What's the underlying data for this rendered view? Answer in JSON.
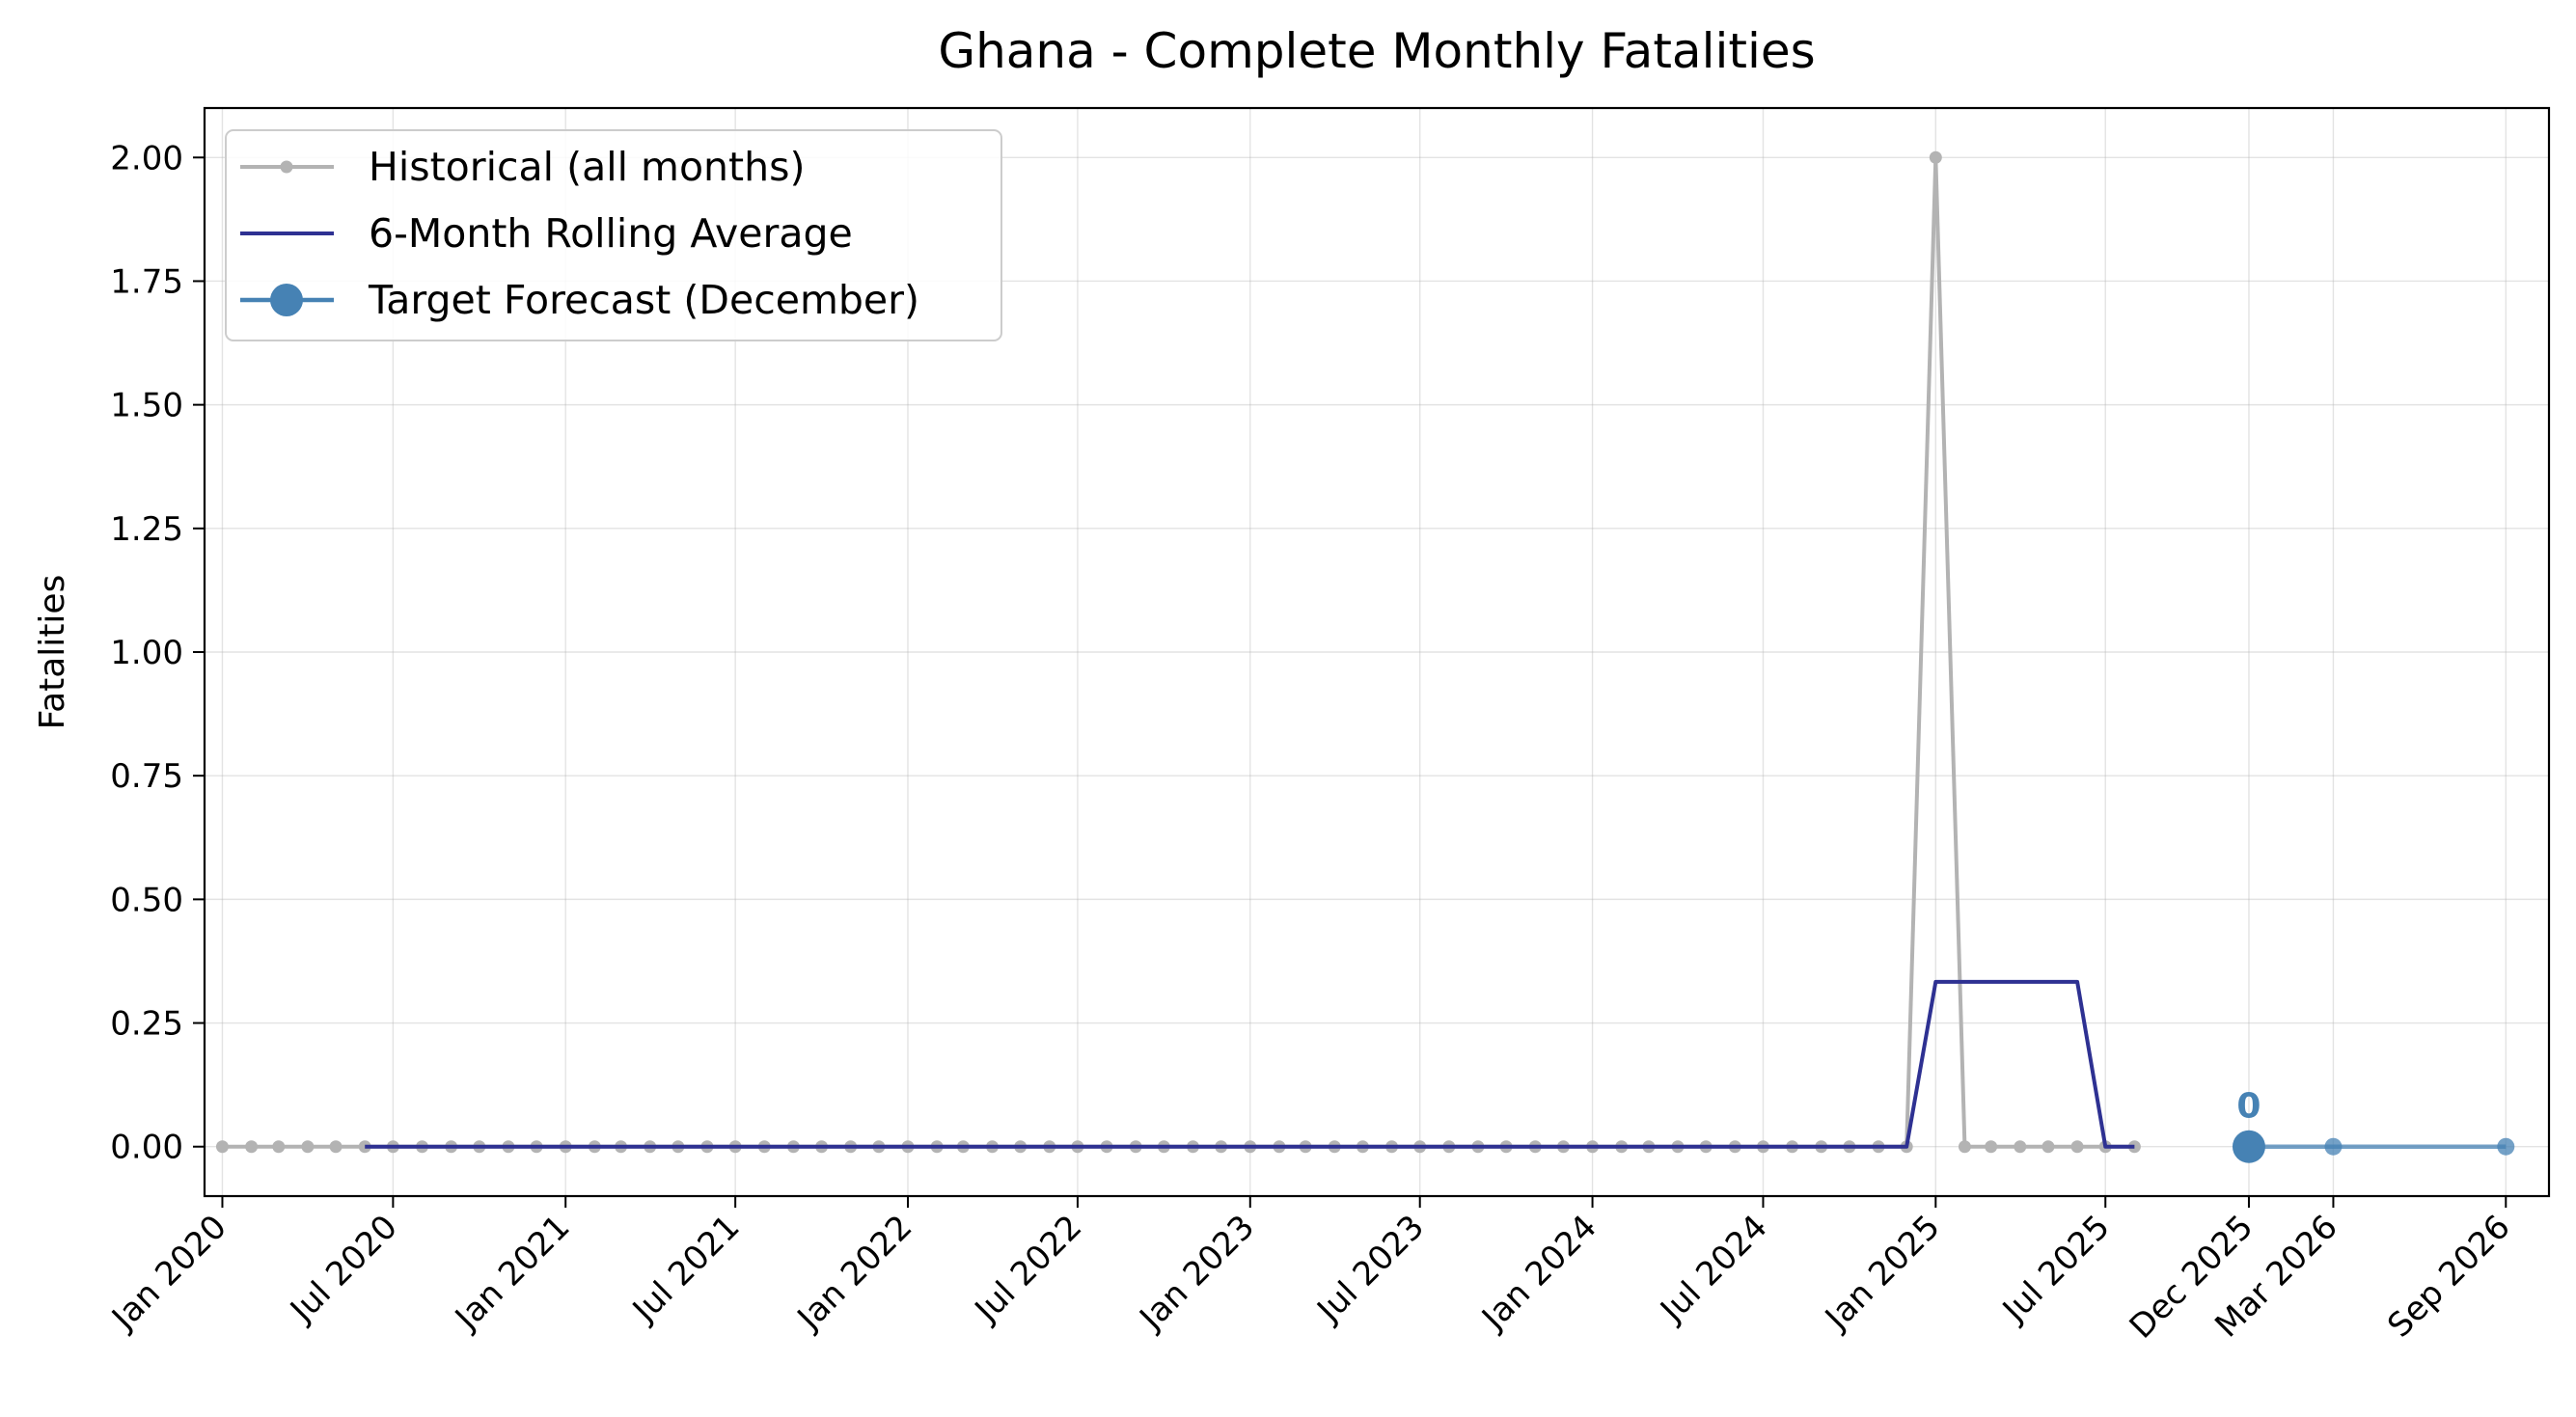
{
  "chart_data": {
    "type": "line",
    "title": "Ghana - Complete Monthly Fatalities",
    "xlabel": "",
    "ylabel": "Fatalities",
    "ylim": [
      -0.1,
      2.1
    ],
    "xlim": [
      "2019-12-13",
      "2026-10-17"
    ],
    "yticks": [
      0.0,
      0.25,
      0.5,
      0.75,
      1.0,
      1.25,
      1.5,
      1.75,
      2.0
    ],
    "ytick_labels": [
      "0.00",
      "0.25",
      "0.50",
      "0.75",
      "1.00",
      "1.25",
      "1.50",
      "1.75",
      "2.00"
    ],
    "xticks": [
      {
        "date": "2020-01-01",
        "label": "Jan 2020"
      },
      {
        "date": "2020-07-01",
        "label": "Jul 2020"
      },
      {
        "date": "2021-01-01",
        "label": "Jan 2021"
      },
      {
        "date": "2021-07-01",
        "label": "Jul 2021"
      },
      {
        "date": "2022-01-01",
        "label": "Jan 2022"
      },
      {
        "date": "2022-07-01",
        "label": "Jul 2022"
      },
      {
        "date": "2023-01-01",
        "label": "Jan 2023"
      },
      {
        "date": "2023-07-01",
        "label": "Jul 2023"
      },
      {
        "date": "2024-01-01",
        "label": "Jan 2024"
      },
      {
        "date": "2024-07-01",
        "label": "Jul 2024"
      },
      {
        "date": "2025-01-01",
        "label": "Jan 2025"
      },
      {
        "date": "2025-07-01",
        "label": "Jul 2025"
      },
      {
        "date": "2025-12-01",
        "label": "Dec 2025"
      },
      {
        "date": "2026-03-01",
        "label": "Mar 2026"
      },
      {
        "date": "2026-09-01",
        "label": "Sep 2026"
      }
    ],
    "grid": true,
    "legend_position": "top-left",
    "series": [
      {
        "name": "Historical (all months)",
        "color": "#b3b3b3",
        "style": "line-with-small-markers",
        "x": [
          "2020-01",
          "2020-02",
          "2020-03",
          "2020-04",
          "2020-05",
          "2020-06",
          "2020-07",
          "2020-08",
          "2020-09",
          "2020-10",
          "2020-11",
          "2020-12",
          "2021-01",
          "2021-02",
          "2021-03",
          "2021-04",
          "2021-05",
          "2021-06",
          "2021-07",
          "2021-08",
          "2021-09",
          "2021-10",
          "2021-11",
          "2021-12",
          "2022-01",
          "2022-02",
          "2022-03",
          "2022-04",
          "2022-05",
          "2022-06",
          "2022-07",
          "2022-08",
          "2022-09",
          "2022-10",
          "2022-11",
          "2022-12",
          "2023-01",
          "2023-02",
          "2023-03",
          "2023-04",
          "2023-05",
          "2023-06",
          "2023-07",
          "2023-08",
          "2023-09",
          "2023-10",
          "2023-11",
          "2023-12",
          "2024-01",
          "2024-02",
          "2024-03",
          "2024-04",
          "2024-05",
          "2024-06",
          "2024-07",
          "2024-08",
          "2024-09",
          "2024-10",
          "2024-11",
          "2024-12",
          "2025-01",
          "2025-02",
          "2025-03",
          "2025-04",
          "2025-05",
          "2025-06",
          "2025-07",
          "2025-08"
        ],
        "y": [
          0,
          0,
          0,
          0,
          0,
          0,
          0,
          0,
          0,
          0,
          0,
          0,
          0,
          0,
          0,
          0,
          0,
          0,
          0,
          0,
          0,
          0,
          0,
          0,
          0,
          0,
          0,
          0,
          0,
          0,
          0,
          0,
          0,
          0,
          0,
          0,
          0,
          0,
          0,
          0,
          0,
          0,
          0,
          0,
          0,
          0,
          0,
          0,
          0,
          0,
          0,
          0,
          0,
          0,
          0,
          0,
          0,
          0,
          0,
          0,
          2,
          0,
          0,
          0,
          0,
          0,
          0,
          0
        ]
      },
      {
        "name": "6-Month Rolling Average",
        "color": "#2e3192",
        "style": "line",
        "x": [
          "2020-06",
          "2020-07",
          "2020-08",
          "2020-09",
          "2020-10",
          "2020-11",
          "2020-12",
          "2021-01",
          "2021-02",
          "2021-03",
          "2021-04",
          "2021-05",
          "2021-06",
          "2021-07",
          "2021-08",
          "2021-09",
          "2021-10",
          "2021-11",
          "2021-12",
          "2022-01",
          "2022-02",
          "2022-03",
          "2022-04",
          "2022-05",
          "2022-06",
          "2022-07",
          "2022-08",
          "2022-09",
          "2022-10",
          "2022-11",
          "2022-12",
          "2023-01",
          "2023-02",
          "2023-03",
          "2023-04",
          "2023-05",
          "2023-06",
          "2023-07",
          "2023-08",
          "2023-09",
          "2023-10",
          "2023-11",
          "2023-12",
          "2024-01",
          "2024-02",
          "2024-03",
          "2024-04",
          "2024-05",
          "2024-06",
          "2024-07",
          "2024-08",
          "2024-09",
          "2024-10",
          "2024-11",
          "2024-12",
          "2025-01",
          "2025-02",
          "2025-03",
          "2025-04",
          "2025-05",
          "2025-06",
          "2025-07",
          "2025-08"
        ],
        "y": [
          0,
          0,
          0,
          0,
          0,
          0,
          0,
          0,
          0,
          0,
          0,
          0,
          0,
          0,
          0,
          0,
          0,
          0,
          0,
          0,
          0,
          0,
          0,
          0,
          0,
          0,
          0,
          0,
          0,
          0,
          0,
          0,
          0,
          0,
          0,
          0,
          0,
          0,
          0,
          0,
          0,
          0,
          0,
          0,
          0,
          0,
          0,
          0,
          0,
          0,
          0,
          0,
          0,
          0,
          0,
          0.3333,
          0.3333,
          0.3333,
          0.3333,
          0.3333,
          0.3333,
          0,
          0
        ]
      },
      {
        "name": "Target Forecast (December)",
        "color": "#4682b4",
        "style": "line-with-markers",
        "x": [
          "2025-12",
          "2026-03",
          "2026-09"
        ],
        "y": [
          0,
          0,
          0
        ]
      }
    ],
    "annotations": [
      {
        "text": "0",
        "x": "2025-12",
        "y": 0,
        "color": "#4682b4"
      }
    ]
  }
}
